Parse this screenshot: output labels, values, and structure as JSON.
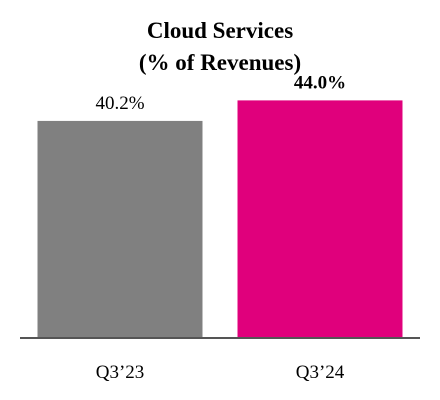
{
  "chart_data": {
    "type": "bar",
    "title": "Cloud Services",
    "subtitle": "(% of Revenues)",
    "categories": [
      "Q3’23",
      "Q3’24"
    ],
    "values": [
      40.2,
      44.0
    ],
    "data_labels": [
      "40.2%",
      "44.0%"
    ],
    "colors": [
      "#808080",
      "#E0007C"
    ],
    "bold_labels": [
      false,
      true
    ],
    "ylim": [
      0,
      50
    ],
    "grid": false,
    "legend": "none"
  }
}
